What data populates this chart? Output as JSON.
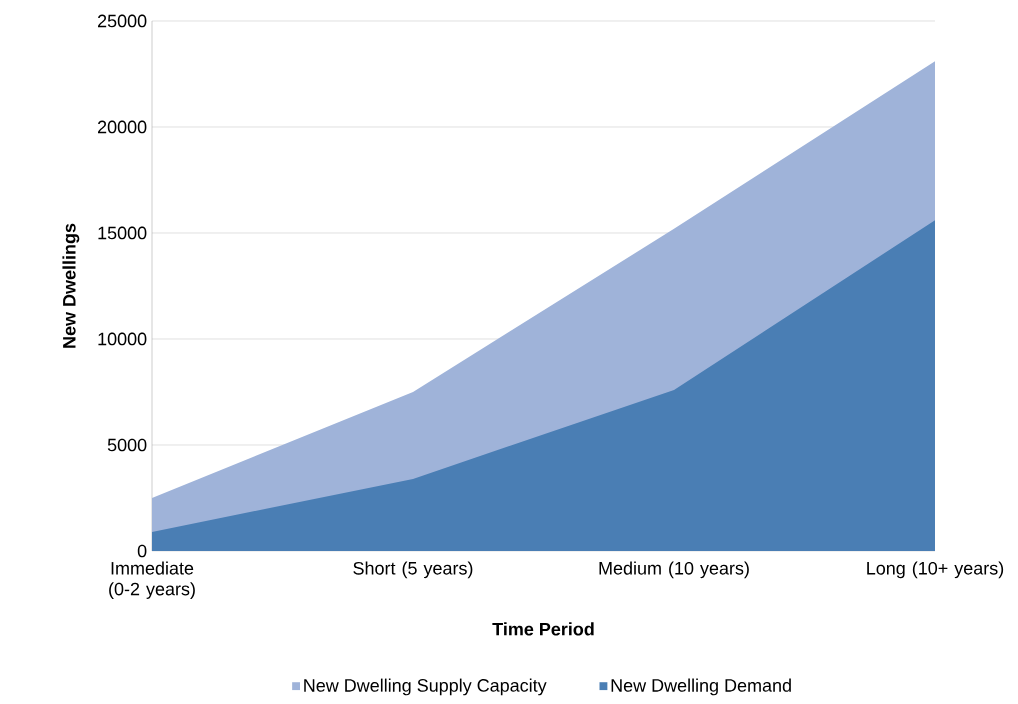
{
  "chart_data": {
    "type": "area",
    "xlabel": "Time Period",
    "ylabel": "New Dwellings",
    "categories": [
      "Immediate (0-2 years)",
      "Short (5 years)",
      "Medium (10 years)",
      "Long (10+ years)"
    ],
    "series": [
      {
        "name": "New Dwelling Supply Capacity",
        "color": "#9fb3d9",
        "values": [
          2500,
          7500,
          15200,
          23100
        ]
      },
      {
        "name": "New Dwelling Demand",
        "color": "#4a7eb4",
        "values": [
          900,
          3400,
          7600,
          15600
        ]
      }
    ],
    "ylim": [
      0,
      25000
    ],
    "yticks": [
      0,
      5000,
      10000,
      15000,
      20000,
      25000
    ],
    "grid": "y",
    "legend": "bottom"
  }
}
